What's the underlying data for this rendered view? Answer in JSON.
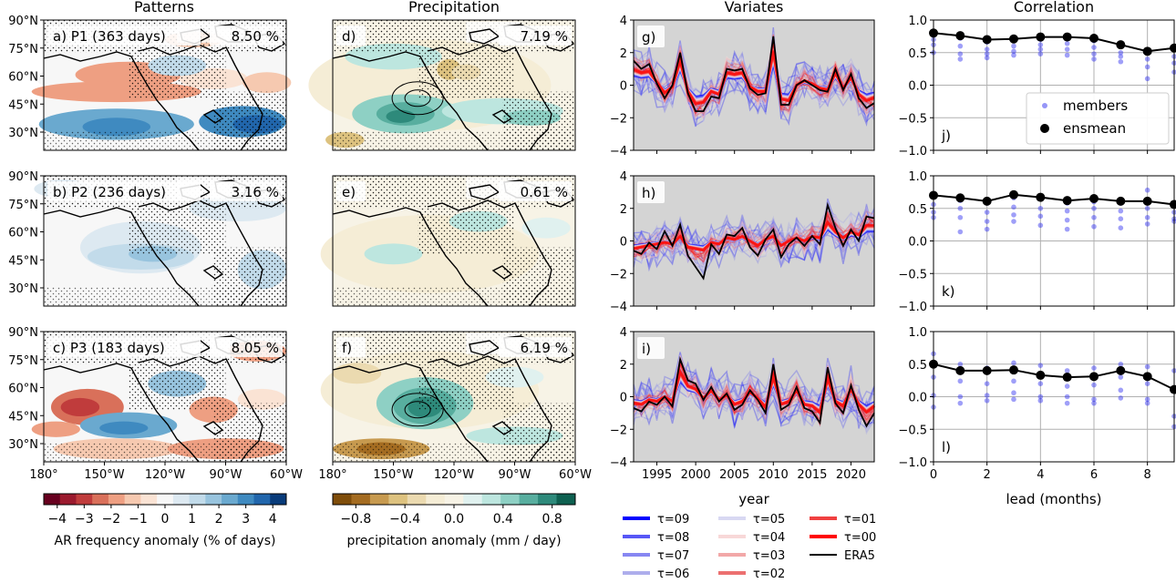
{
  "column_titles": [
    "Patterns",
    "Precipitation",
    "Variates",
    "Correlation"
  ],
  "map_lat_ticks": [
    "90°N",
    "75°N",
    "60°N",
    "45°N",
    "30°N"
  ],
  "map_lon_ticks": [
    "180°",
    "150°W",
    "120°W",
    "90°W",
    "60°W"
  ],
  "pattern_panels": [
    {
      "label": "a) P1 (363 days)",
      "pct": "8.50 %"
    },
    {
      "label": "b) P2 (236 days)",
      "pct": "3.16 %"
    },
    {
      "label": "c) P3 (183 days)",
      "pct": "8.05 %"
    }
  ],
  "precip_panels": [
    {
      "label": "d)",
      "pct": "7.19 %"
    },
    {
      "label": "e)",
      "pct": "0.61 %"
    },
    {
      "label": "f)",
      "pct": "6.19 %"
    }
  ],
  "colorbars": [
    {
      "ticks": [
        "−4",
        "−3",
        "−2",
        "−1",
        "0",
        "1",
        "2",
        "3",
        "4"
      ],
      "label": "AR frequency anomaly (% of days)",
      "colors": [
        "#67001f",
        "#9b1a2e",
        "#c03c3c",
        "#d9705a",
        "#ee9f82",
        "#f6c9b0",
        "#fae3d4",
        "#f7f7f7",
        "#dde9f1",
        "#c2dbea",
        "#98c4de",
        "#6aa9cf",
        "#3f8ac0",
        "#2166ac",
        "#083b7a"
      ]
    },
    {
      "ticks": [
        "−0.8",
        "−0.4",
        "0.0",
        "0.4",
        "0.8"
      ],
      "label": "precipitation anomaly (mm / day)",
      "colors": [
        "#7f4d0a",
        "#a46c21",
        "#c79a4f",
        "#ddc27f",
        "#ebdab0",
        "#f5edd6",
        "#f7f3e6",
        "#e0f1ef",
        "#bde6df",
        "#8ed0c4",
        "#58ae9f",
        "#2e8a7b",
        "#0e6050"
      ]
    }
  ],
  "variates_panels": [
    {
      "label": "g)"
    },
    {
      "label": "h)"
    },
    {
      "label": "i)"
    }
  ],
  "variates_axis": {
    "yticks": [
      "4",
      "2",
      "0",
      "−2",
      "−4"
    ],
    "xticks": [
      "1995",
      "2000",
      "2005",
      "2010",
      "2015",
      "2020"
    ],
    "xlabel": "year"
  },
  "correlation_panels": [
    {
      "label": "j)"
    },
    {
      "label": "k)"
    },
    {
      "label": "l)"
    }
  ],
  "correlation_axis": {
    "yticks": [
      "1.0",
      "0.5",
      "0.0",
      "−0.5",
      "−1.0"
    ],
    "xticks": [
      "0",
      "2",
      "4",
      "6",
      "8"
    ],
    "xlabel": "lead (months)"
  },
  "correlation_legend": {
    "members": "members",
    "ensmean": "ensmean"
  },
  "bottom_legend": [
    {
      "label": "τ=09",
      "color": "#0000ff",
      "opacity": 1.0,
      "width": 4
    },
    {
      "label": "τ=08",
      "color": "#3a3af5",
      "opacity": 0.85,
      "width": 4
    },
    {
      "label": "τ=07",
      "color": "#6a6af0",
      "opacity": 0.8,
      "width": 4
    },
    {
      "label": "τ=06",
      "color": "#9a9ae8",
      "opacity": 0.8,
      "width": 4
    },
    {
      "label": "τ=05",
      "color": "#d8d8f2",
      "opacity": 1.0,
      "width": 4
    },
    {
      "label": "τ=04",
      "color": "#f8d8d8",
      "opacity": 1.0,
      "width": 4
    },
    {
      "label": "τ=03",
      "color": "#f2a8a8",
      "opacity": 1.0,
      "width": 4
    },
    {
      "label": "τ=02",
      "color": "#ec7070",
      "opacity": 1.0,
      "width": 4
    },
    {
      "label": "τ=01",
      "color": "#f04040",
      "opacity": 1.0,
      "width": 4
    },
    {
      "label": "τ=00",
      "color": "#ff0000",
      "opacity": 1.0,
      "width": 4
    },
    {
      "label": "ERA5",
      "color": "#000000",
      "opacity": 1.0,
      "width": 2
    }
  ],
  "chart_data": [
    {
      "type": "line",
      "title": "Variates",
      "panel": "g)",
      "xlabel": "year",
      "xlim": [
        1992,
        2023
      ],
      "ylim": [
        -4,
        4
      ],
      "series": [
        {
          "name": "ERA5",
          "x": [
            1992,
            1993,
            1994,
            1995,
            1996,
            1997,
            1998,
            1999,
            2000,
            2001,
            2002,
            2003,
            2004,
            2005,
            2006,
            2007,
            2008,
            2009,
            2010,
            2011,
            2012,
            2013,
            2014,
            2015,
            2016,
            2017,
            2018,
            2019,
            2020,
            2021,
            2022,
            2023
          ],
          "values": [
            1.5,
            1.0,
            1.3,
            0.1,
            -0.8,
            0.0,
            2.0,
            -0.5,
            -1.6,
            -1.6,
            -0.7,
            -0.8,
            1.0,
            0.9,
            1.0,
            -0.2,
            -0.6,
            -0.5,
            3.0,
            -1.2,
            -1.2,
            0.0,
            0.3,
            0.0,
            -0.3,
            -0.4,
            1.0,
            -0.3,
            0.7,
            -0.8,
            -1.4,
            -1.1
          ]
        },
        {
          "name": "τ=00",
          "x": [
            1992,
            1993,
            1994,
            1995,
            1996,
            1997,
            1998,
            1999,
            2000,
            2001,
            2002,
            2003,
            2004,
            2005,
            2006,
            2007,
            2008,
            2009,
            2010,
            2011,
            2012,
            2013,
            2014,
            2015,
            2016,
            2017,
            2018,
            2019,
            2020,
            2021,
            2022,
            2023
          ],
          "values": [
            1.0,
            0.8,
            0.9,
            0.2,
            -0.5,
            -0.1,
            1.6,
            -0.4,
            -1.2,
            -1.1,
            -0.4,
            -0.6,
            0.8,
            0.7,
            0.8,
            -0.1,
            -0.4,
            -0.4,
            2.2,
            -0.9,
            -1.0,
            0.0,
            0.3,
            0.1,
            -0.2,
            -0.3,
            0.8,
            -0.2,
            0.5,
            -0.6,
            -1.0,
            -0.8
          ]
        }
      ]
    },
    {
      "type": "line",
      "title": "Variates",
      "panel": "h)",
      "xlabel": "year",
      "xlim": [
        1992,
        2023
      ],
      "ylim": [
        -4,
        4
      ],
      "series": [
        {
          "name": "ERA5",
          "x": [
            1992,
            1993,
            1994,
            1995,
            1996,
            1997,
            1998,
            1999,
            2000,
            2001,
            2002,
            2003,
            2004,
            2005,
            2006,
            2007,
            2008,
            2009,
            2010,
            2011,
            2012,
            2013,
            2014,
            2015,
            2016,
            2017,
            2018,
            2019,
            2020,
            2021,
            2022,
            2023
          ],
          "values": [
            -0.6,
            -0.8,
            -0.1,
            -0.5,
            0.6,
            -0.3,
            1.0,
            -0.9,
            -1.6,
            -2.3,
            -0.2,
            -0.8,
            0.4,
            0.3,
            0.8,
            -0.4,
            -0.9,
            0.1,
            0.7,
            -1.0,
            -0.2,
            0.2,
            -0.3,
            0.3,
            -0.2,
            2.2,
            0.8,
            -0.3,
            0.7,
            0.0,
            1.5,
            1.4
          ]
        },
        {
          "name": "τ=00",
          "x": [
            1992,
            1993,
            1994,
            1995,
            1996,
            1997,
            1998,
            1999,
            2000,
            2001,
            2002,
            2003,
            2004,
            2005,
            2006,
            2007,
            2008,
            2009,
            2010,
            2011,
            2012,
            2013,
            2014,
            2015,
            2016,
            2017,
            2018,
            2019,
            2020,
            2021,
            2022,
            2023
          ],
          "values": [
            -0.5,
            -0.4,
            -0.3,
            -0.2,
            -0.1,
            -0.2,
            0.3,
            -0.4,
            -0.5,
            -0.6,
            -0.1,
            -0.2,
            0.2,
            0.1,
            0.3,
            0.0,
            -0.3,
            0.1,
            0.3,
            -0.3,
            0.0,
            0.2,
            0.0,
            0.3,
            0.2,
            1.2,
            0.6,
            0.2,
            0.6,
            0.4,
            1.0,
            1.0
          ]
        }
      ]
    },
    {
      "type": "line",
      "title": "Variates",
      "panel": "i)",
      "xlabel": "year",
      "xlim": [
        1992,
        2023
      ],
      "ylim": [
        -4,
        4
      ],
      "series": [
        {
          "name": "ERA5",
          "x": [
            1992,
            1993,
            1994,
            1995,
            1996,
            1997,
            1998,
            1999,
            2000,
            2001,
            2002,
            2003,
            2004,
            2005,
            2006,
            2007,
            2008,
            2009,
            2010,
            2011,
            2012,
            2013,
            2014,
            2015,
            2016,
            2017,
            2018,
            2019,
            2020,
            2021,
            2022,
            2023
          ],
          "values": [
            -0.7,
            -0.9,
            -0.3,
            -0.5,
            0.0,
            -0.6,
            2.3,
            1.0,
            0.8,
            -0.2,
            0.6,
            -0.3,
            0.2,
            -0.8,
            -0.5,
            0.4,
            -0.2,
            -1.0,
            2.0,
            -0.8,
            -0.5,
            0.6,
            -0.7,
            -0.9,
            -1.6,
            1.8,
            -0.4,
            -1.0,
            0.7,
            -0.8,
            -1.8,
            -1.0
          ]
        },
        {
          "name": "τ=00",
          "x": [
            1992,
            1993,
            1994,
            1995,
            1996,
            1997,
            1998,
            1999,
            2000,
            2001,
            2002,
            2003,
            2004,
            2005,
            2006,
            2007,
            2008,
            2009,
            2010,
            2011,
            2012,
            2013,
            2014,
            2015,
            2016,
            2017,
            2018,
            2019,
            2020,
            2021,
            2022,
            2023
          ],
          "values": [
            -0.4,
            -0.5,
            -0.2,
            -0.3,
            0.0,
            -0.3,
            1.6,
            0.7,
            0.5,
            -0.1,
            0.4,
            -0.2,
            0.1,
            -0.5,
            -0.3,
            0.3,
            -0.1,
            -0.7,
            1.3,
            -0.5,
            -0.3,
            0.4,
            -0.5,
            -0.6,
            -1.0,
            1.2,
            -0.3,
            -0.6,
            0.5,
            -0.5,
            -1.0,
            -0.6
          ]
        }
      ]
    },
    {
      "type": "scatter",
      "title": "Correlation",
      "panel": "j)",
      "xlabel": "lead (months)",
      "xlim": [
        0,
        9
      ],
      "ylim": [
        -1.0,
        1.0
      ],
      "legend": "top-right",
      "series": [
        {
          "name": "ensmean",
          "x": [
            0,
            1,
            2,
            3,
            4,
            5,
            6,
            7,
            8,
            9
          ],
          "values": [
            0.8,
            0.76,
            0.7,
            0.71,
            0.74,
            0.74,
            0.72,
            0.62,
            0.52,
            0.57
          ]
        },
        {
          "name": "members",
          "x": [
            0,
            0,
            0,
            0,
            1,
            1,
            1,
            1,
            2,
            2,
            2,
            2,
            3,
            3,
            3,
            3,
            4,
            4,
            4,
            4,
            5,
            5,
            5,
            5,
            6,
            6,
            6,
            6,
            7,
            7,
            7,
            7,
            8,
            8,
            8,
            8,
            9,
            9,
            9,
            9
          ],
          "values": [
            0.78,
            0.7,
            0.62,
            0.5,
            0.72,
            0.6,
            0.48,
            0.4,
            0.66,
            0.55,
            0.48,
            0.42,
            0.68,
            0.6,
            0.52,
            0.46,
            0.7,
            0.62,
            0.55,
            0.48,
            0.72,
            0.64,
            0.55,
            0.46,
            0.68,
            0.58,
            0.48,
            0.4,
            0.6,
            0.5,
            0.44,
            0.36,
            0.52,
            0.4,
            0.28,
            0.1,
            0.55,
            0.44,
            0.34,
            0.2
          ]
        }
      ]
    },
    {
      "type": "scatter",
      "title": "Correlation",
      "panel": "k)",
      "xlabel": "lead (months)",
      "xlim": [
        0,
        9
      ],
      "ylim": [
        -1.0,
        1.0
      ],
      "series": [
        {
          "name": "ensmean",
          "x": [
            0,
            1,
            2,
            3,
            4,
            5,
            6,
            7,
            8,
            9
          ],
          "values": [
            0.7,
            0.66,
            0.61,
            0.71,
            0.67,
            0.62,
            0.65,
            0.61,
            0.61,
            0.56
          ]
        },
        {
          "name": "members",
          "x": [
            0,
            0,
            0,
            0,
            1,
            1,
            1,
            1,
            2,
            2,
            2,
            2,
            3,
            3,
            3,
            3,
            4,
            4,
            4,
            4,
            5,
            5,
            5,
            5,
            6,
            6,
            6,
            6,
            7,
            7,
            7,
            7,
            8,
            8,
            8,
            8,
            9,
            9,
            9,
            9
          ],
          "values": [
            0.68,
            0.56,
            0.44,
            0.36,
            0.62,
            0.5,
            0.36,
            0.14,
            0.58,
            0.44,
            0.3,
            0.18,
            0.66,
            0.52,
            0.4,
            0.3,
            0.64,
            0.5,
            0.38,
            0.24,
            0.58,
            0.46,
            0.32,
            0.18,
            0.6,
            0.5,
            0.36,
            0.22,
            0.58,
            0.46,
            0.34,
            0.2,
            0.78,
            0.5,
            0.36,
            0.26,
            0.54,
            0.44,
            0.34,
            0.3
          ]
        }
      ]
    },
    {
      "type": "scatter",
      "title": "Correlation",
      "panel": "l)",
      "xlabel": "lead (months)",
      "xlim": [
        0,
        9
      ],
      "ylim": [
        -1.0,
        1.0
      ],
      "series": [
        {
          "name": "ensmean",
          "x": [
            0,
            1,
            2,
            3,
            4,
            5,
            6,
            7,
            8,
            9
          ],
          "values": [
            0.5,
            0.4,
            0.4,
            0.41,
            0.33,
            0.3,
            0.31,
            0.4,
            0.31,
            0.11
          ]
        },
        {
          "name": "members",
          "x": [
            0,
            0,
            0,
            0,
            1,
            1,
            1,
            1,
            2,
            2,
            2,
            2,
            3,
            3,
            3,
            3,
            4,
            4,
            4,
            4,
            5,
            5,
            5,
            5,
            6,
            6,
            6,
            6,
            7,
            7,
            7,
            7,
            8,
            8,
            8,
            8,
            9,
            9,
            9,
            9
          ],
          "values": [
            0.66,
            0.3,
            0.02,
            -0.16,
            0.5,
            0.24,
            0.0,
            -0.1,
            0.44,
            0.2,
            0.02,
            -0.06,
            0.52,
            0.24,
            0.06,
            -0.04,
            0.48,
            0.2,
            0.0,
            -0.06,
            0.4,
            0.16,
            0.0,
            -0.1,
            0.44,
            0.18,
            -0.04,
            -0.1,
            0.5,
            0.3,
            0.1,
            -0.02,
            0.46,
            0.2,
            -0.04,
            -0.1,
            0.4,
            0.1,
            -0.3,
            -0.46
          ]
        }
      ]
    }
  ]
}
